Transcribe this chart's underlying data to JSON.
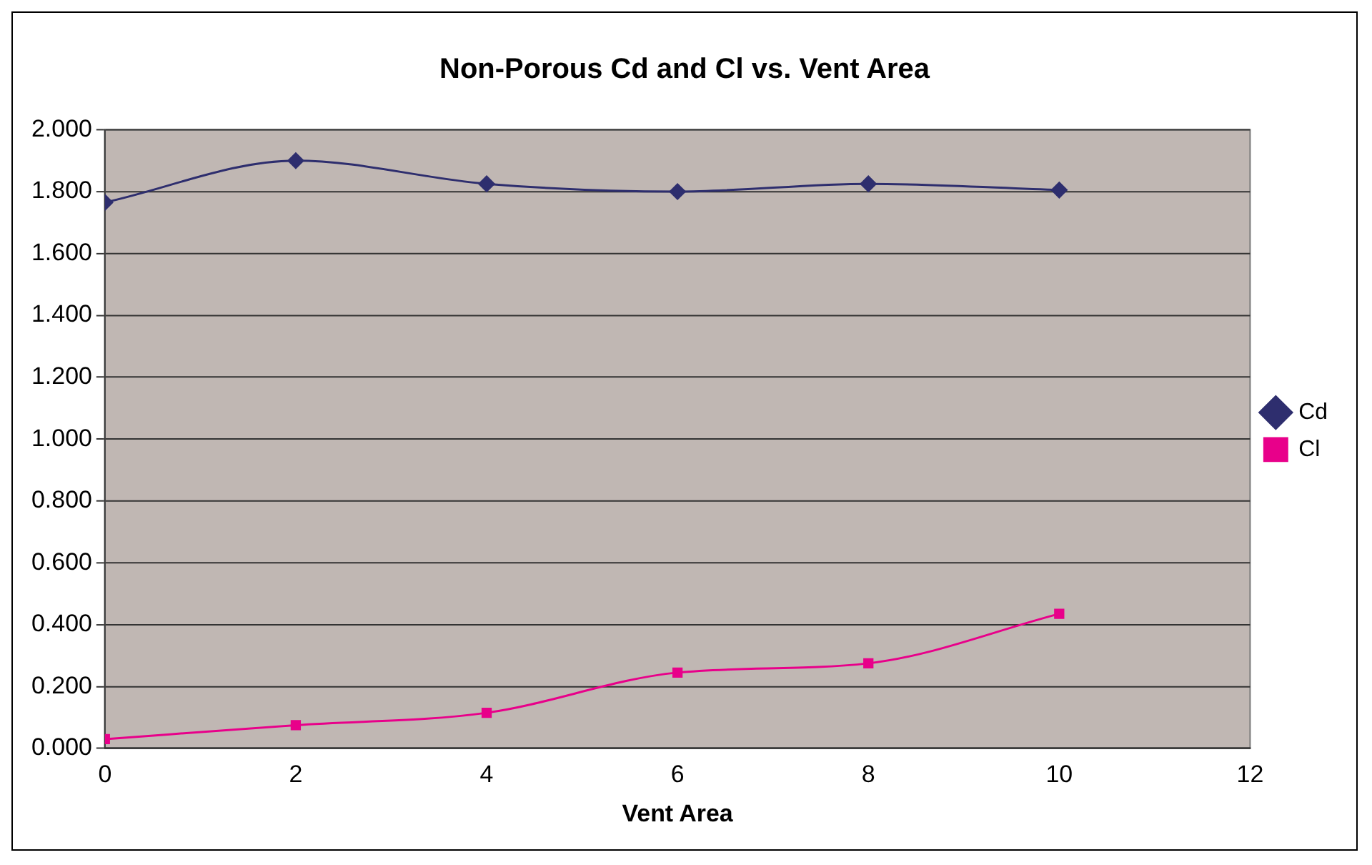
{
  "chart_data": {
    "type": "line",
    "title": "Non-Porous Cd and Cl vs. Vent Area",
    "xlabel": "Vent Area",
    "x": [
      0,
      2,
      4,
      6,
      8,
      10
    ],
    "series": [
      {
        "name": "Cd",
        "color": "#2e2e6e",
        "marker": "diamond",
        "values": [
          1.765,
          1.9,
          1.825,
          1.8,
          1.825,
          1.805
        ]
      },
      {
        "name": "Cl",
        "color": "#e8008a",
        "marker": "square",
        "values": [
          0.03,
          0.075,
          0.115,
          0.245,
          0.275,
          0.435
        ]
      }
    ],
    "xlim": [
      0,
      12
    ],
    "xticks": [
      0,
      2,
      4,
      6,
      8,
      10,
      12
    ],
    "ylim": [
      0,
      2
    ],
    "yticks": [
      {
        "value": 0,
        "label": "0.000"
      },
      {
        "value": 0.2,
        "label": "0.200"
      },
      {
        "value": 0.4,
        "label": "0.400"
      },
      {
        "value": 0.6,
        "label": "0.600"
      },
      {
        "value": 0.8,
        "label": "0.800"
      },
      {
        "value": 1,
        "label": "1.000"
      },
      {
        "value": 1.2,
        "label": "1.200"
      },
      {
        "value": 1.4,
        "label": "1.400"
      },
      {
        "value": 1.6,
        "label": "1.600"
      },
      {
        "value": 1.8,
        "label": "1.800"
      },
      {
        "value": 2,
        "label": "2.000"
      }
    ],
    "grid": "y",
    "legend": "right",
    "line_style": "solid"
  }
}
